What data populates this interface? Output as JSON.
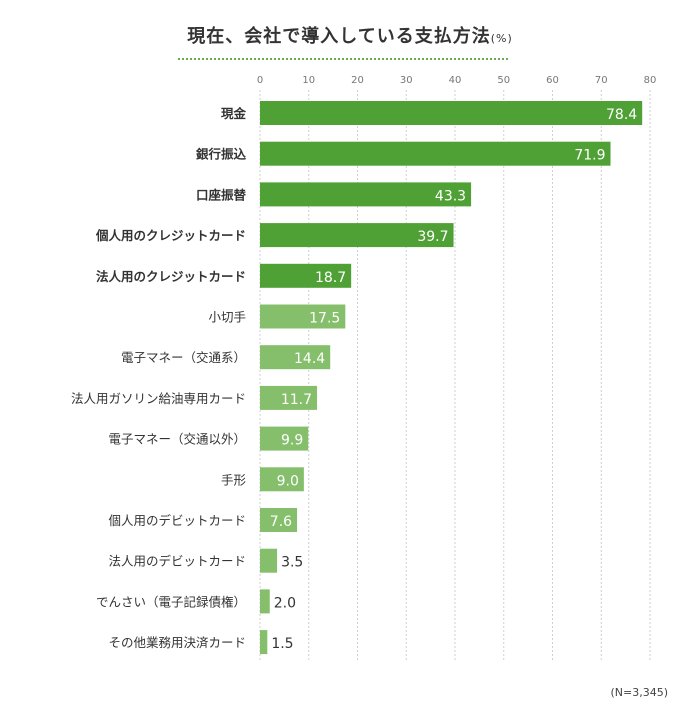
{
  "title": "現在、会社で導入している支払方法",
  "title_unit": "(%)",
  "note": "(N=3,345)",
  "colors": {
    "dark": "#4fa136",
    "light": "#85bf6c",
    "grid": "#cfcfcf",
    "title_underline": "#6aaa52"
  },
  "chart_data": {
    "type": "bar",
    "orientation": "horizontal",
    "title": "現在、会社で導入している支払方法",
    "xlim": [
      0,
      80
    ],
    "ticks": [
      0,
      10,
      20,
      30,
      40,
      50,
      60,
      70,
      80
    ],
    "grid": true,
    "categories": [
      "現金",
      "銀行振込",
      "口座振替",
      "個人用のクレジットカード",
      "法人用のクレジットカード",
      "小切手",
      "電子マネー（交通系）",
      "法人用ガソリン給油専用カード",
      "電子マネー（交通以外）",
      "手形",
      "個人用のデビットカード",
      "法人用のデビットカード",
      "でんさい（電子記録債権）",
      "その他業務用決済カード"
    ],
    "values": [
      78.4,
      71.9,
      43.3,
      39.7,
      18.7,
      17.5,
      14.4,
      11.7,
      9.9,
      9.0,
      7.6,
      3.5,
      2.0,
      1.5
    ],
    "value_labels": [
      "78.4",
      "71.9",
      "43.3",
      "39.7",
      "18.7",
      "17.5",
      "14.4",
      "11.7",
      "9.9",
      "9.0",
      "7.6",
      "3.5",
      "2.0",
      "1.5"
    ],
    "highlight": [
      true,
      true,
      true,
      true,
      true,
      false,
      false,
      false,
      false,
      false,
      false,
      false,
      false,
      false
    ]
  }
}
